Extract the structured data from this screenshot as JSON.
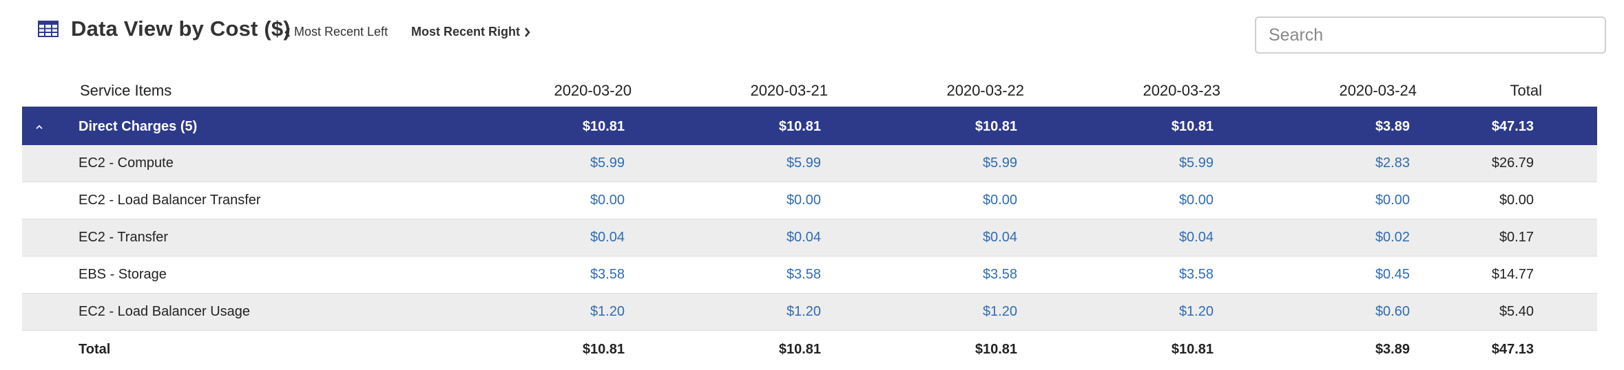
{
  "header": {
    "title": "Data View by Cost ($)",
    "prev_label": "Most Recent Left",
    "next_label": "Most Recent Right"
  },
  "search": {
    "placeholder": "Search",
    "value": ""
  },
  "table": {
    "columns": [
      "Service Items",
      "2020-03-20",
      "2020-03-21",
      "2020-03-22",
      "2020-03-23",
      "2020-03-24",
      "Total"
    ],
    "group": {
      "name": "Direct Charges (5)",
      "values": [
        "$10.81",
        "$10.81",
        "$10.81",
        "$10.81",
        "$3.89"
      ],
      "total": "$47.13",
      "expanded": true
    },
    "rows": [
      {
        "name": "EC2 - Compute",
        "values": [
          "$5.99",
          "$5.99",
          "$5.99",
          "$5.99",
          "$2.83"
        ],
        "total": "$26.79"
      },
      {
        "name": "EC2 - Load Balancer Transfer",
        "values": [
          "$0.00",
          "$0.00",
          "$0.00",
          "$0.00",
          "$0.00"
        ],
        "total": "$0.00"
      },
      {
        "name": "EC2 - Transfer",
        "values": [
          "$0.04",
          "$0.04",
          "$0.04",
          "$0.04",
          "$0.02"
        ],
        "total": "$0.17"
      },
      {
        "name": "EBS - Storage",
        "values": [
          "$3.58",
          "$3.58",
          "$3.58",
          "$3.58",
          "$0.45"
        ],
        "total": "$14.77"
      },
      {
        "name": "EC2 - Load Balancer Usage",
        "values": [
          "$1.20",
          "$1.20",
          "$1.20",
          "$1.20",
          "$0.60"
        ],
        "total": "$5.40"
      }
    ],
    "total_row": {
      "name": "Total",
      "values": [
        "$10.81",
        "$10.81",
        "$10.81",
        "$10.81",
        "$3.89"
      ],
      "total": "$47.13"
    }
  },
  "colors": {
    "group_bg": "#2d3a8a",
    "link": "#2f6cb3",
    "shaded_row": "#ededed"
  },
  "icons": [
    "table-icon",
    "chevron-left-icon",
    "chevron-right-icon",
    "chevron-up-icon"
  ]
}
